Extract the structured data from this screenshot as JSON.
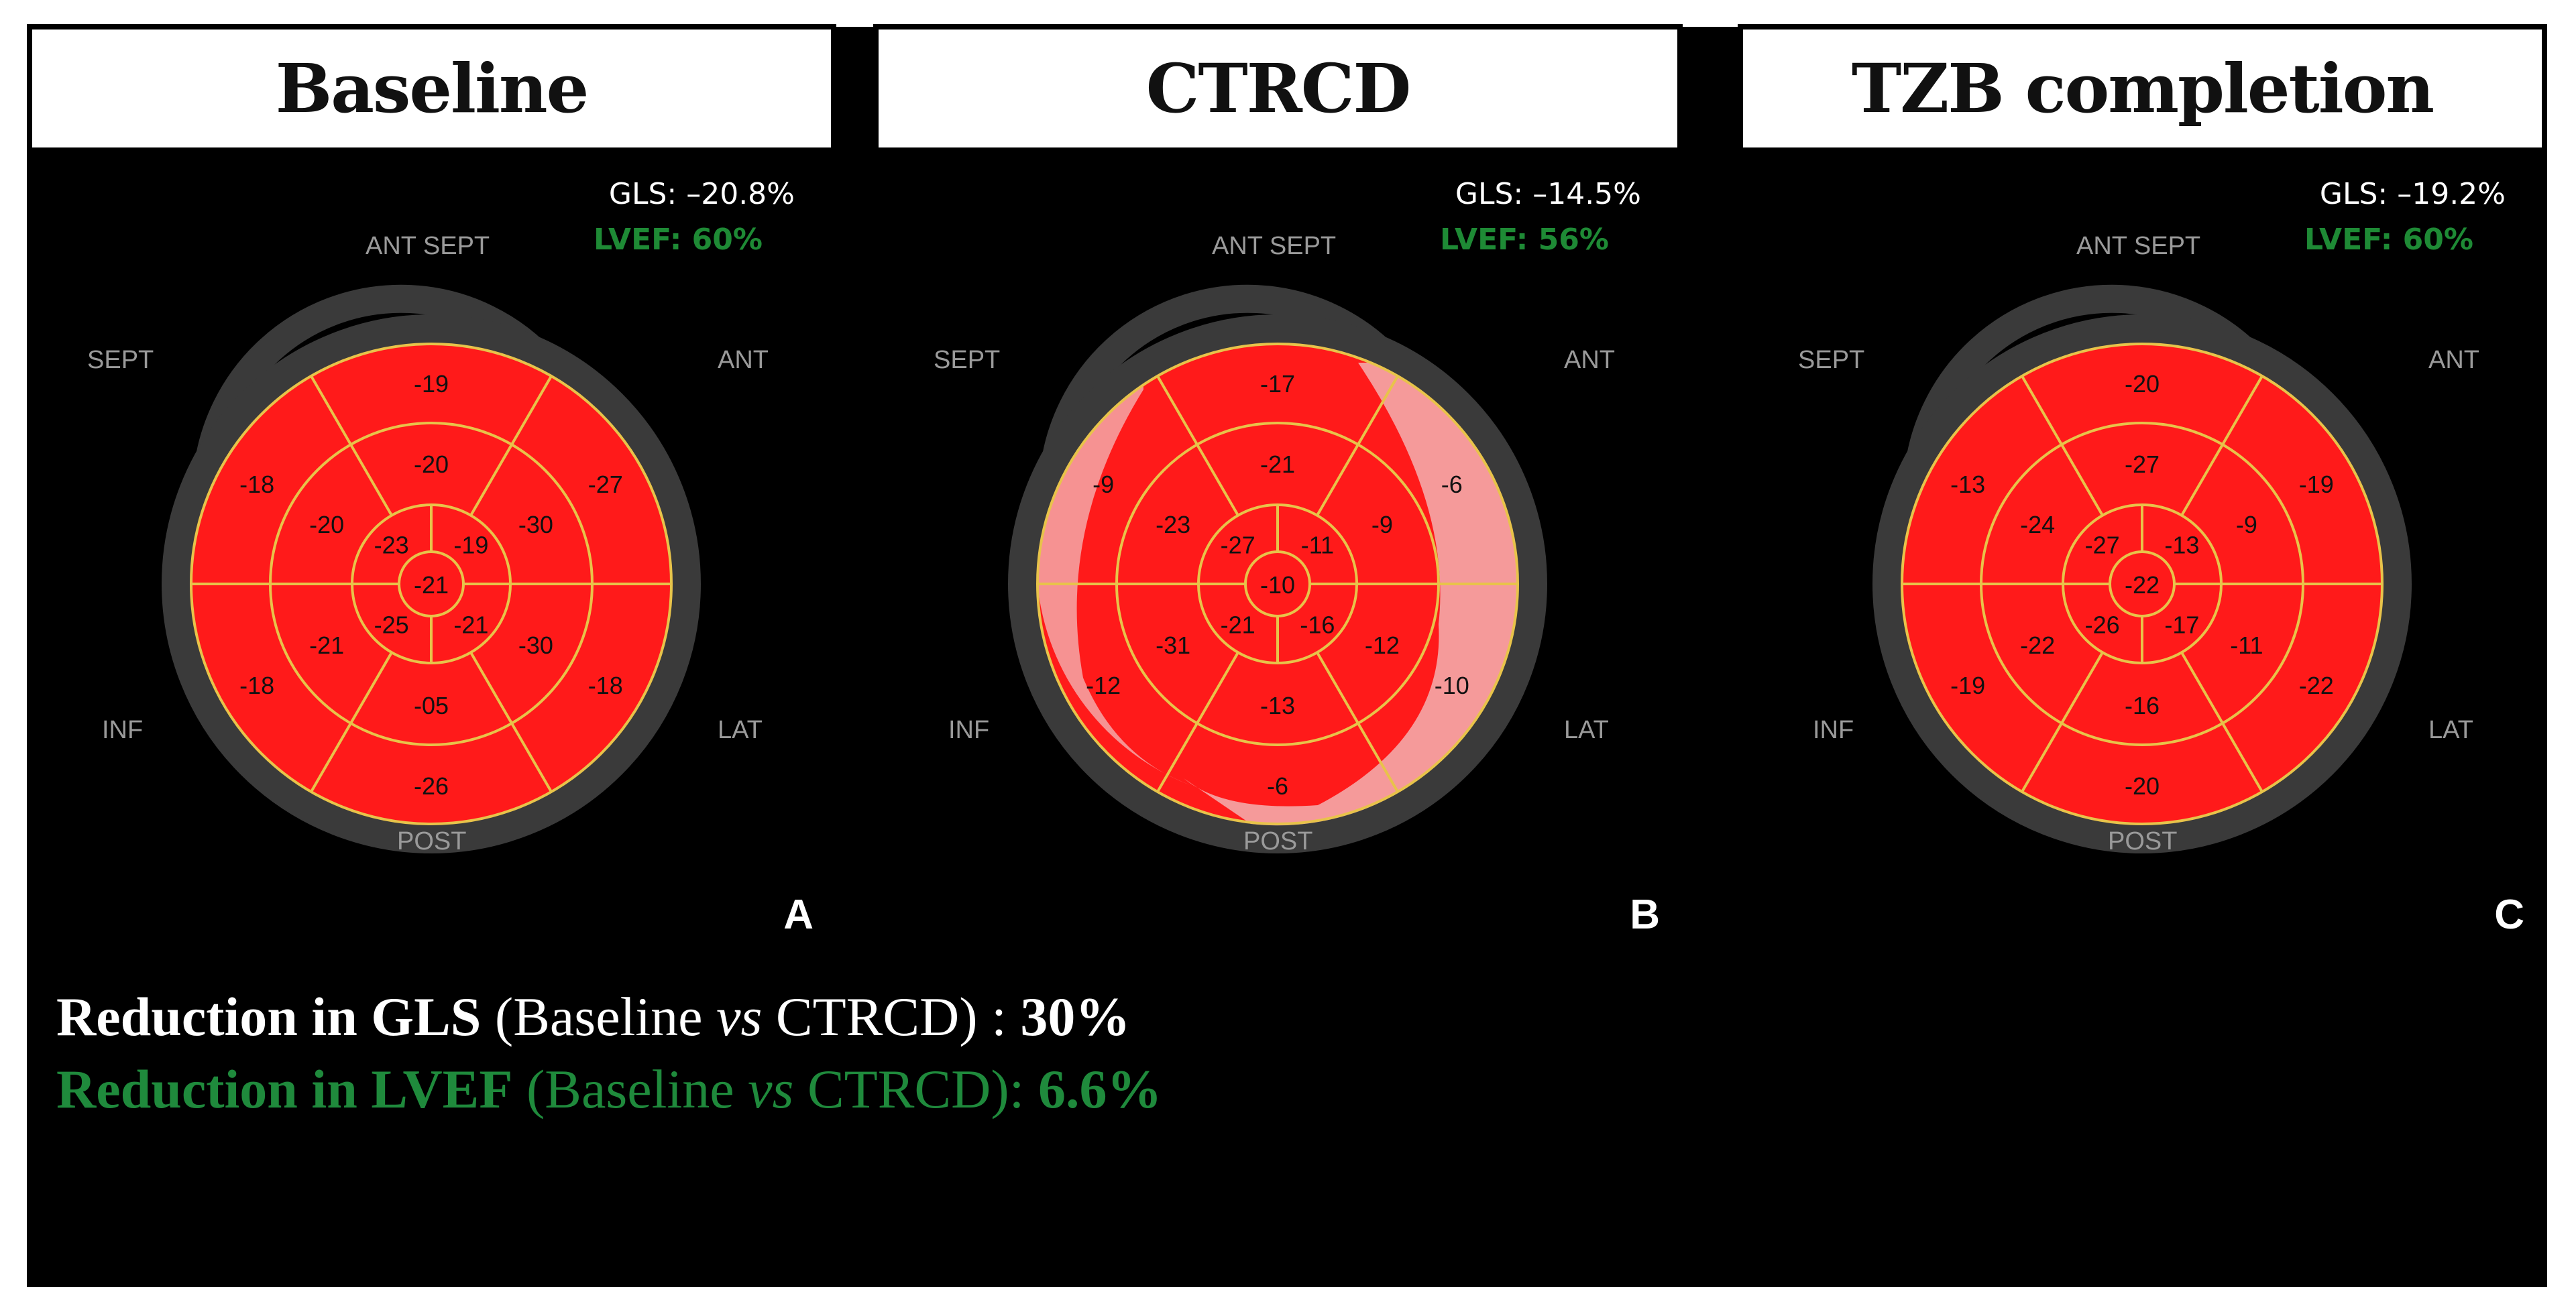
{
  "colors": {
    "segment_red": "#ff1a1a",
    "border_yellow": "#e8c34a",
    "ring_grey": "#3a3a3a",
    "lvef_green": "#1e8a35",
    "pale_region": "#f4a8a8"
  },
  "panels": [
    {
      "title": "Baseline",
      "gls": "GLS: –20.8%",
      "lvef": "LVEF: 60%",
      "letter": "A",
      "wall_labels": {
        "ant_sept": "ANT SEPT",
        "ant": "ANT",
        "sept": "SEPT",
        "lat": "LAT",
        "inf": "INF",
        "post": "POST"
      },
      "segments": {
        "basal": [
          "-19",
          "-27",
          "-18",
          "-26",
          "-18",
          "-18"
        ],
        "mid": [
          "-20",
          "-30",
          "-30",
          "-05",
          "-21",
          "-20"
        ],
        "apical": [
          "-19",
          "-21",
          "-25",
          "-23"
        ],
        "apex": "-21"
      },
      "pale": false
    },
    {
      "title": "CTRCD",
      "gls": "GLS: –14.5%",
      "lvef": "LVEF: 56%",
      "letter": "B",
      "wall_labels": {
        "ant_sept": "ANT SEPT",
        "ant": "ANT",
        "sept": "SEPT",
        "lat": "LAT",
        "inf": "INF",
        "post": "POST"
      },
      "segments": {
        "basal": [
          "-17",
          "-6",
          "-10",
          "-6",
          "-12",
          "-9"
        ],
        "mid": [
          "-21",
          "-9",
          "-12",
          "-13",
          "-31",
          "-23"
        ],
        "apical": [
          "-11",
          "-16",
          "-21",
          "-27"
        ],
        "apex": "-10"
      },
      "pale": true
    },
    {
      "title": "TZB completion",
      "gls": "GLS: –19.2%",
      "lvef": "LVEF: 60%",
      "letter": "C",
      "wall_labels": {
        "ant_sept": "ANT SEPT",
        "ant": "ANT",
        "sept": "SEPT",
        "lat": "LAT",
        "inf": "INF",
        "post": "POST"
      },
      "segments": {
        "basal": [
          "-20",
          "-19",
          "-22",
          "-20",
          "-19",
          "-13"
        ],
        "mid": [
          "-27",
          "-9",
          "-11",
          "-16",
          "-22",
          "-24"
        ],
        "apical": [
          "-13",
          "-17",
          "-26",
          "-27"
        ],
        "apex": "-22"
      },
      "pale": false
    }
  ],
  "summary": {
    "gls_bold": "Reduction in GLS",
    "gls_open": " (Baseline ",
    "gls_vs": "vs",
    "gls_close": " CTRCD) : ",
    "gls_value": "30%",
    "lvef_bold": "Reduction in LVEF",
    "lvef_open": " (Baseline ",
    "lvef_vs": "vs",
    "lvef_close": " CTRCD): ",
    "lvef_value": "6.6%"
  }
}
